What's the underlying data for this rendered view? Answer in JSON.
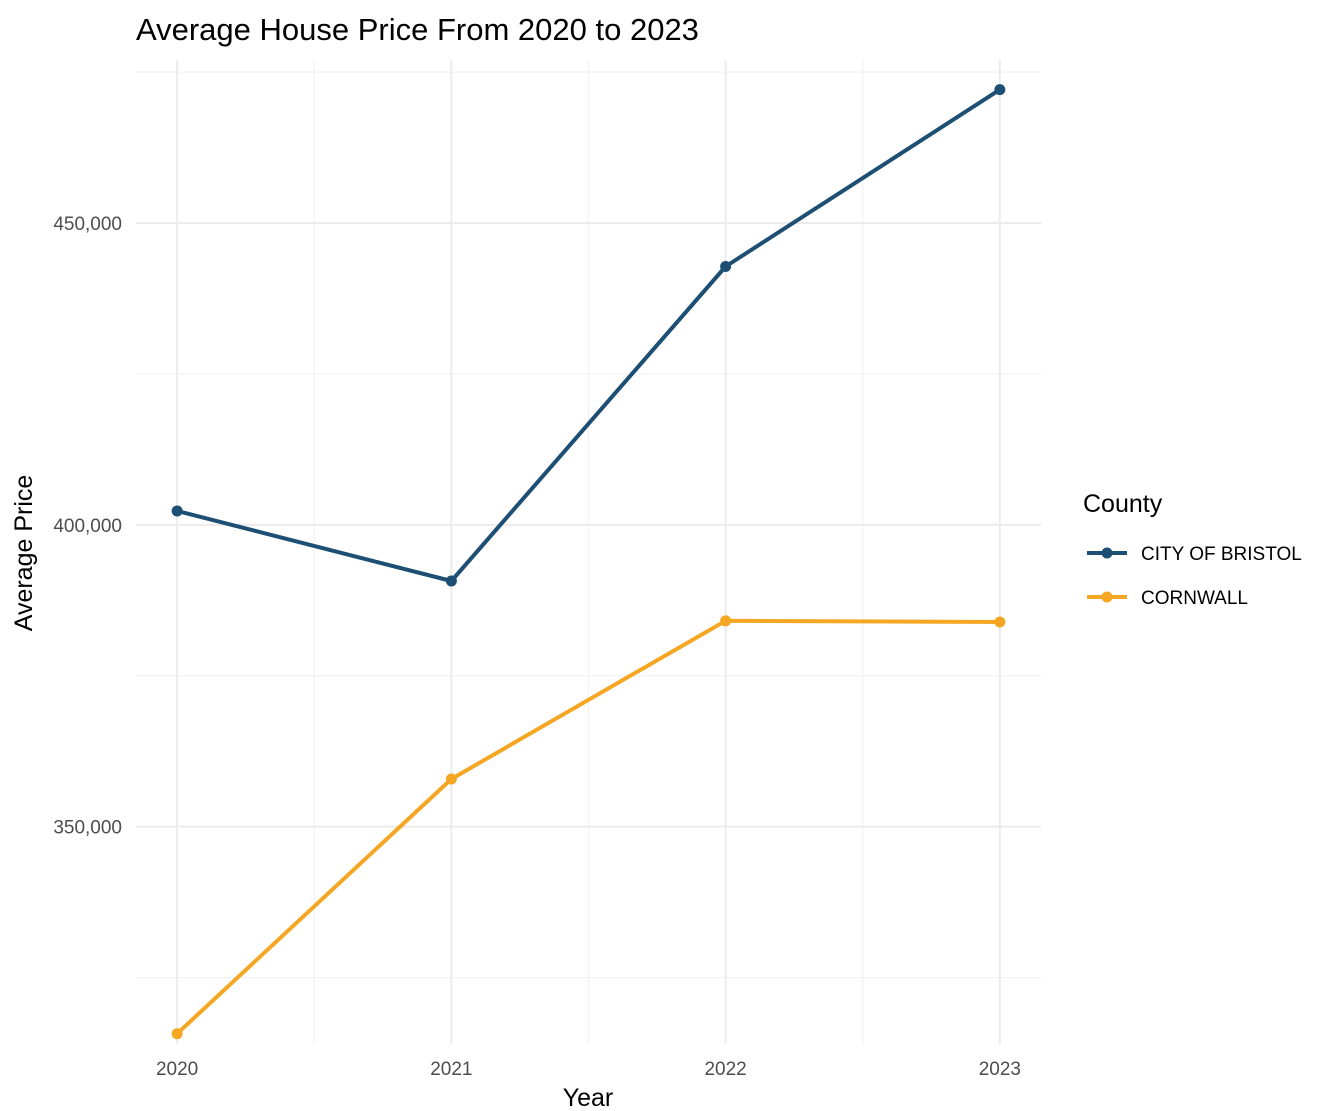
{
  "chart_data": {
    "type": "line",
    "title": "Average House Price From 2020 to 2023",
    "xlabel": "Year",
    "ylabel": "Average Price",
    "x": [
      2020,
      2021,
      2022,
      2023
    ],
    "x_tick_labels": [
      "2020",
      "2021",
      "2022",
      "2023"
    ],
    "xlim": [
      2019.85,
      2023.15
    ],
    "ylim": [
      314000,
      477000
    ],
    "y_ticks": [
      350000,
      400000,
      450000
    ],
    "y_tick_labels": [
      "350,000",
      "400,000",
      "450,000"
    ],
    "grid": true,
    "legend": {
      "title": "County",
      "position": "right"
    },
    "series": [
      {
        "name": "CITY OF BRISTOL",
        "color": "#1d4e74",
        "values": [
          402300,
          390700,
          442800,
          472100
        ]
      },
      {
        "name": "CORNWALL",
        "color": "#f5a623",
        "values": [
          315700,
          357900,
          384100,
          383900
        ]
      }
    ]
  }
}
